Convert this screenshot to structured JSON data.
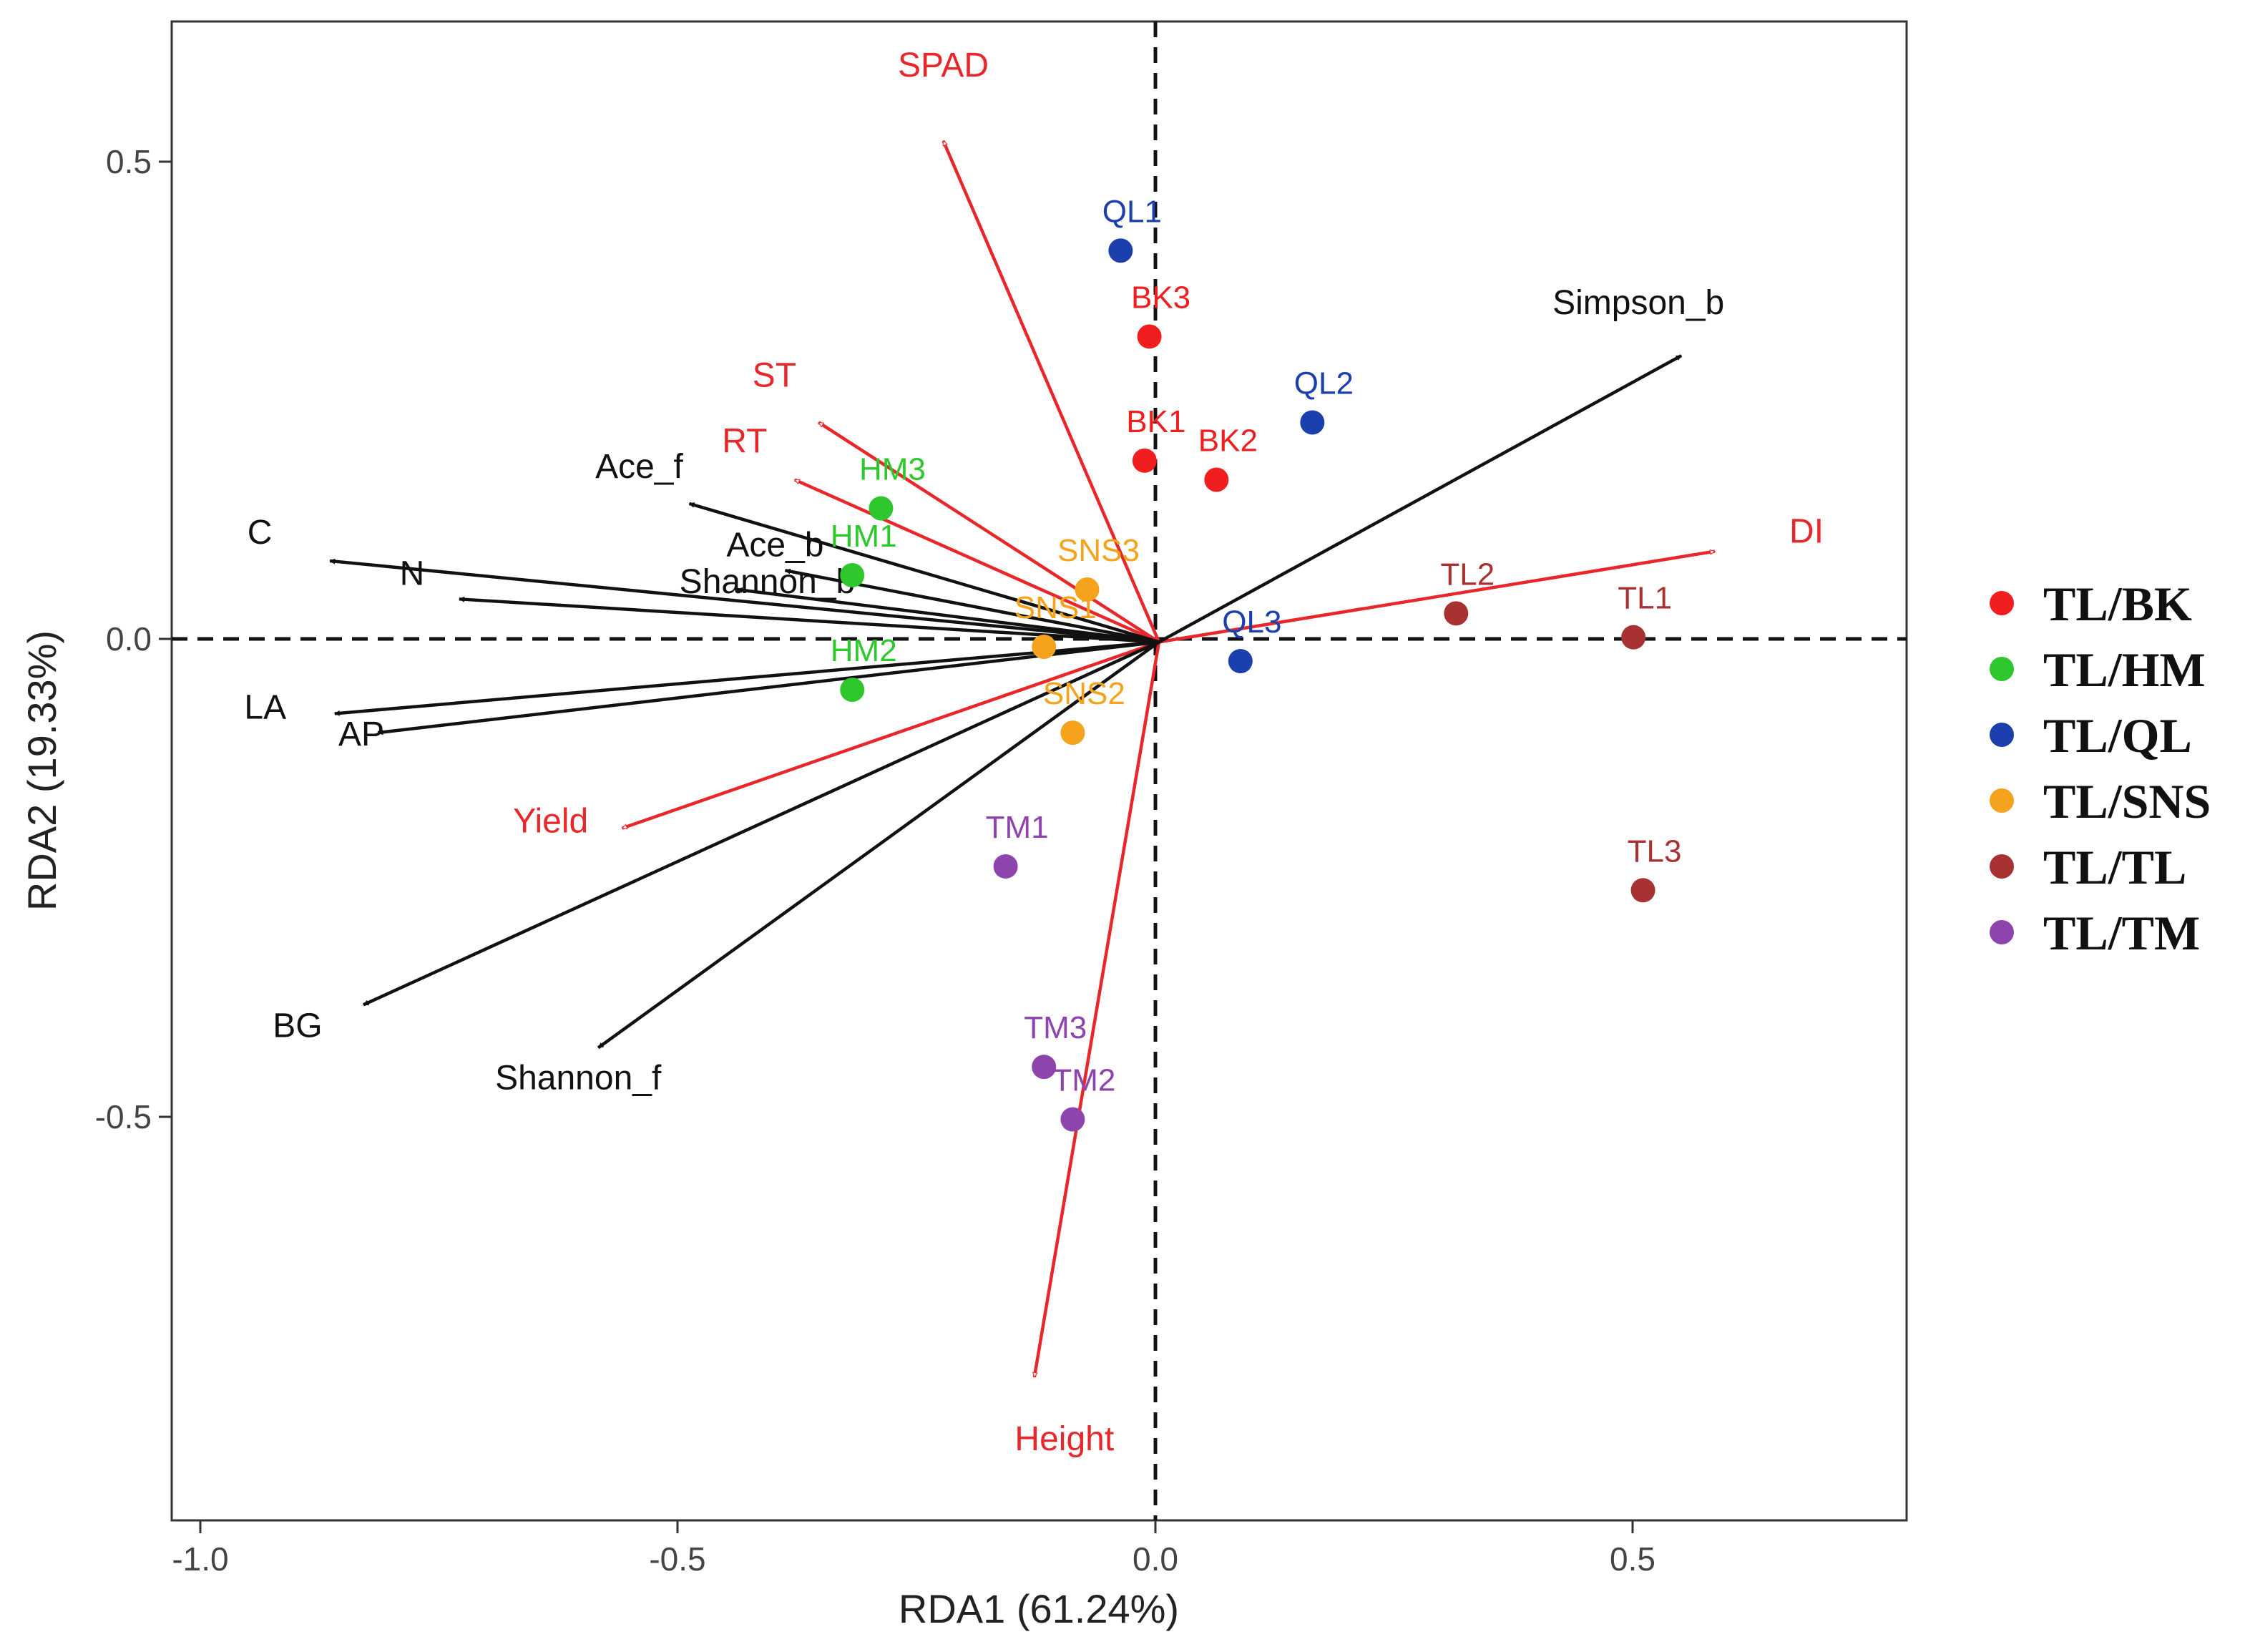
{
  "chart_data": {
    "type": "scatter",
    "subtype": "rda-biplot",
    "xlabel": "RDA1 (61.24%)",
    "ylabel": "RDA2 (19.33%)",
    "xlim": [
      -1.03,
      0.78
    ],
    "ylim": [
      -0.92,
      0.65
    ],
    "x_ticks": [
      -1.0,
      -0.5,
      0.0,
      0.5
    ],
    "x_tick_labels": [
      "-1.0",
      "-0.5",
      "0.0",
      "0.5"
    ],
    "y_ticks": [
      -0.5,
      0.0,
      0.5
    ],
    "y_tick_labels": [
      "-0.5",
      "0.0",
      "0.5"
    ],
    "grid": false,
    "reference_lines": "dashed lines at x = 0 and y = 0",
    "legend_position": "right",
    "groups": [
      {
        "name": "TL/BK",
        "color": "#f01e1e"
      },
      {
        "name": "TL/HM",
        "color": "#2ec72e"
      },
      {
        "name": "TL/QL",
        "color": "#1c3fae"
      },
      {
        "name": "TL/SNS",
        "color": "#f5a31c"
      },
      {
        "name": "TL/TL",
        "color": "#a83232"
      },
      {
        "name": "TL/TM",
        "color": "#8e44ad"
      }
    ],
    "points": [
      {
        "label": "BK1",
        "group": "TL/BK",
        "x": -0.015,
        "y": 0.19
      },
      {
        "label": "BK2",
        "group": "TL/BK",
        "x": 0.06,
        "y": 0.17
      },
      {
        "label": "BK3",
        "group": "TL/BK",
        "x": -0.01,
        "y": 0.32
      },
      {
        "label": "HM1",
        "group": "TL/HM",
        "x": -0.32,
        "y": 0.07
      },
      {
        "label": "HM2",
        "group": "TL/HM",
        "x": -0.32,
        "y": -0.05
      },
      {
        "label": "HM3",
        "group": "TL/HM",
        "x": -0.29,
        "y": 0.14
      },
      {
        "label": "QL1",
        "group": "TL/QL",
        "x": -0.04,
        "y": 0.41
      },
      {
        "label": "QL2",
        "group": "TL/QL",
        "x": 0.16,
        "y": 0.23
      },
      {
        "label": "QL3",
        "group": "TL/QL",
        "x": 0.085,
        "y": -0.02
      },
      {
        "label": "SNS1",
        "group": "TL/SNS",
        "x": -0.12,
        "y": -0.005
      },
      {
        "label": "SNS2",
        "group": "TL/SNS",
        "x": -0.09,
        "y": -0.095
      },
      {
        "label": "SNS3",
        "group": "TL/SNS",
        "x": -0.075,
        "y": 0.055
      },
      {
        "label": "TL1",
        "group": "TL/TL",
        "x": 0.495,
        "y": 0.005
      },
      {
        "label": "TL2",
        "group": "TL/TL",
        "x": 0.31,
        "y": 0.03
      },
      {
        "label": "TL3",
        "group": "TL/TL",
        "x": 0.505,
        "y": -0.26
      },
      {
        "label": "TM1",
        "group": "TL/TM",
        "x": -0.16,
        "y": -0.235
      },
      {
        "label": "TM2",
        "group": "TL/TM",
        "x": -0.09,
        "y": -0.5
      },
      {
        "label": "TM3",
        "group": "TL/TM",
        "x": -0.12,
        "y": -0.445
      }
    ],
    "arrows": [
      {
        "label": "SPAD",
        "x": -0.225,
        "y": 0.525,
        "color": "#e8272a",
        "style": "open"
      },
      {
        "label": "ST",
        "x": -0.355,
        "y": 0.23,
        "color": "#e8272a",
        "style": "open"
      },
      {
        "label": "RT",
        "x": -0.38,
        "y": 0.17,
        "color": "#e8272a",
        "style": "open"
      },
      {
        "label": "DI",
        "x": 0.58,
        "y": 0.095,
        "color": "#e8272a",
        "style": "open"
      },
      {
        "label": "Yield",
        "x": -0.56,
        "y": -0.195,
        "color": "#e8272a",
        "style": "open"
      },
      {
        "label": "Height",
        "x": -0.13,
        "y": -0.77,
        "color": "#e8272a",
        "style": "open"
      },
      {
        "label": "Simpson_b",
        "x": 0.545,
        "y": 0.3,
        "color": "#111111",
        "style": "closed"
      },
      {
        "label": "Ace_f",
        "x": -0.49,
        "y": 0.145,
        "color": "#111111",
        "style": "closed"
      },
      {
        "label": "Ace_b",
        "x": -0.39,
        "y": 0.075,
        "color": "#111111",
        "style": "closed"
      },
      {
        "label": "Shannon_b",
        "x": -0.44,
        "y": 0.055,
        "color": "#111111",
        "style": "closed"
      },
      {
        "label": "C",
        "x": -0.865,
        "y": 0.085,
        "color": "#111111",
        "style": "closed"
      },
      {
        "label": "N",
        "x": -0.73,
        "y": 0.045,
        "color": "#111111",
        "style": "closed"
      },
      {
        "label": "LA",
        "x": -0.86,
        "y": -0.075,
        "color": "#111111",
        "style": "closed"
      },
      {
        "label": "AP",
        "x": -0.815,
        "y": -0.095,
        "color": "#111111",
        "style": "closed"
      },
      {
        "label": "BG",
        "x": -0.83,
        "y": -0.38,
        "color": "#111111",
        "style": "closed"
      },
      {
        "label": "Shannon_f",
        "x": -0.585,
        "y": -0.425,
        "color": "#111111",
        "style": "closed"
      }
    ]
  }
}
